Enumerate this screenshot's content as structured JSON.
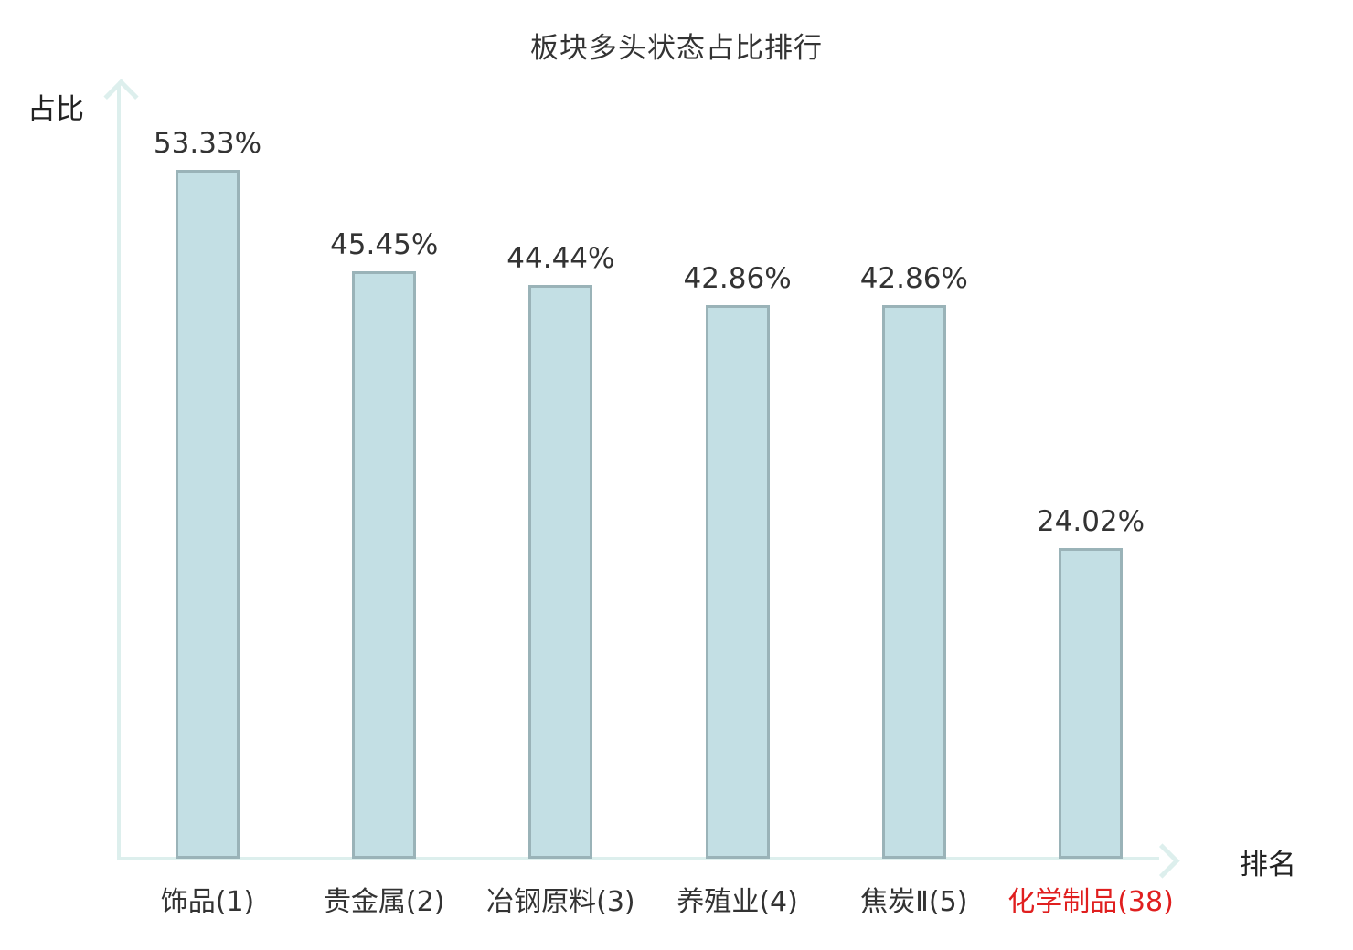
{
  "chart_data": {
    "type": "bar",
    "title": "板块多头状态占比排行",
    "xlabel": "排名",
    "ylabel": "占比",
    "categories": [
      "饰品(1)",
      "贵金属(2)",
      "冶钢原料(3)",
      "养殖业(4)",
      "焦炭Ⅱ(5)",
      "化学制品(38)"
    ],
    "values": [
      53.33,
      45.45,
      44.44,
      42.86,
      42.86,
      24.02
    ],
    "value_labels": [
      "53.33%",
      "45.45%",
      "44.44%",
      "42.86%",
      "42.86%",
      "24.02%"
    ],
    "category_colors": [
      "#333333",
      "#333333",
      "#333333",
      "#333333",
      "#333333",
      "#e01f1f"
    ],
    "ylim": [
      0,
      60
    ],
    "grid": false,
    "legend": null,
    "layout_hints": {
      "bars_sorted_descending": true,
      "highlighted_category_index": 5,
      "value_labels_above_bars": true,
      "axes_have_arrowheads": true
    },
    "colors": {
      "bar_fill": "#c3dfe4",
      "bar_border": "#9ab3b8",
      "axis": "#ddefed",
      "text": "#333333",
      "highlight": "#e01f1f"
    }
  }
}
